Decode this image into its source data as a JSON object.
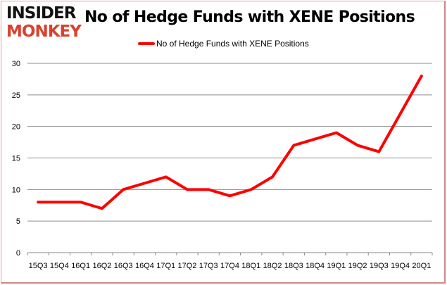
{
  "logo": {
    "line1": "INSIDER",
    "line2": "MONKEY"
  },
  "chart_data": {
    "type": "line",
    "title": "No of Hedge Funds with XENE Positions",
    "xlabel": "",
    "ylabel": "",
    "categories": [
      "15Q3",
      "15Q4",
      "16Q1",
      "16Q2",
      "16Q3",
      "16Q4",
      "17Q1",
      "17Q2",
      "17Q3",
      "17Q4",
      "18Q1",
      "18Q2",
      "18Q3",
      "18Q4",
      "19Q1",
      "19Q2",
      "19Q3",
      "19Q4",
      "20Q1"
    ],
    "series": [
      {
        "name": "No of Hedge Funds with XENE Positions",
        "color": "#ff0000",
        "values": [
          8,
          8,
          8,
          7,
          10,
          11,
          12,
          10,
          10,
          9,
          10,
          12,
          17,
          18,
          19,
          17,
          16,
          22,
          28
        ]
      }
    ],
    "ylim": [
      0,
      30
    ],
    "yticks": [
      0,
      5,
      10,
      15,
      20,
      25,
      30
    ],
    "grid": true,
    "legend_position": "top-center"
  }
}
